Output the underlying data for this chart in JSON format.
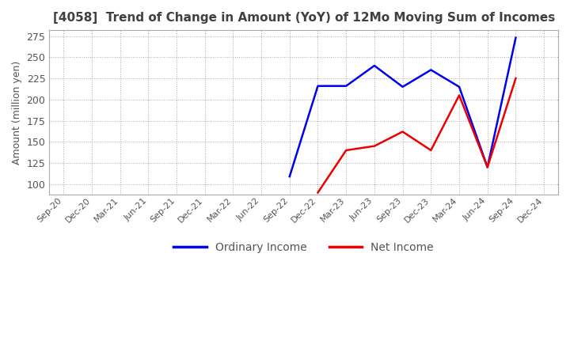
{
  "title": "[4058]  Trend of Change in Amount (YoY) of 12Mo Moving Sum of Incomes",
  "ylabel": "Amount (million yen)",
  "ylim": [
    88,
    282
  ],
  "yticks": [
    100,
    125,
    150,
    175,
    200,
    225,
    250,
    275
  ],
  "x_labels": [
    "Sep-20",
    "Dec-20",
    "Mar-21",
    "Jun-21",
    "Sep-21",
    "Dec-21",
    "Mar-22",
    "Jun-22",
    "Sep-22",
    "Dec-22",
    "Mar-23",
    "Jun-23",
    "Sep-23",
    "Dec-23",
    "Mar-24",
    "Jun-24",
    "Sep-24",
    "Dec-24"
  ],
  "ordinary_income_x": [
    8,
    9,
    10,
    11,
    12,
    13,
    14,
    15,
    16
  ],
  "ordinary_income_y": [
    109,
    216,
    216,
    240,
    215,
    235,
    215,
    120,
    273
  ],
  "net_income_x": [
    9,
    10,
    11,
    12,
    13,
    14,
    15,
    16
  ],
  "net_income_y": [
    90,
    140,
    145,
    162,
    140,
    205,
    120,
    225
  ],
  "line_color_ordinary": "#0000ee",
  "line_color_net": "#ee0000",
  "background_color": "#ffffff",
  "grid_color": "#aaaaaa",
  "title_color": "#404040",
  "legend_labels": [
    "Ordinary Income",
    "Net Income"
  ]
}
